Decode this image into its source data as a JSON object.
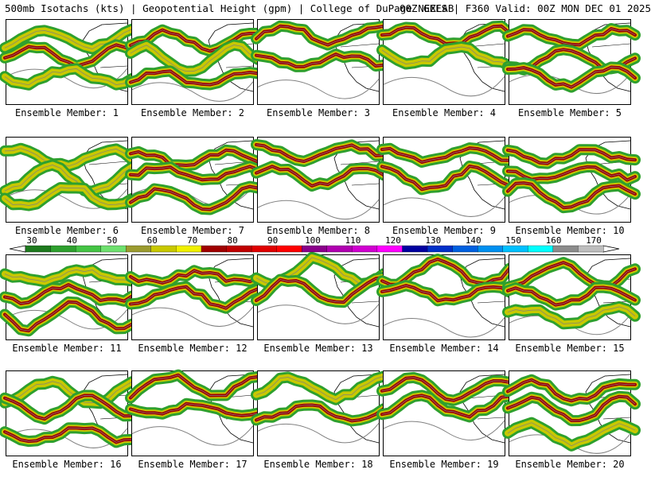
{
  "header": {
    "left": "500mb Isotachs (kts) | Geopotential Height (gpm) | College of DuPage NEXLAB",
    "right": "00Z GEFS | F360 Valid: 00Z MON DEC 01 2025"
  },
  "member_prefix": "Ensemble Member:",
  "members": [
    {
      "id": 1,
      "label": "Ensemble Member: 1"
    },
    {
      "id": 2,
      "label": "Ensemble Member: 2"
    },
    {
      "id": 3,
      "label": "Ensemble Member: 3"
    },
    {
      "id": 4,
      "label": "Ensemble Member: 4"
    },
    {
      "id": 5,
      "label": "Ensemble Member: 5"
    },
    {
      "id": 6,
      "label": "Ensemble Member: 6"
    },
    {
      "id": 7,
      "label": "Ensemble Member: 7"
    },
    {
      "id": 8,
      "label": "Ensemble Member: 8"
    },
    {
      "id": 9,
      "label": "Ensemble Member: 9"
    },
    {
      "id": 10,
      "label": "Ensemble Member: 10"
    },
    {
      "id": 11,
      "label": "Ensemble Member: 11"
    },
    {
      "id": 12,
      "label": "Ensemble Member: 12"
    },
    {
      "id": 13,
      "label": "Ensemble Member: 13"
    },
    {
      "id": 14,
      "label": "Ensemble Member: 14"
    },
    {
      "id": 15,
      "label": "Ensemble Member: 15"
    },
    {
      "id": 16,
      "label": "Ensemble Member: 16"
    },
    {
      "id": 17,
      "label": "Ensemble Member: 17"
    },
    {
      "id": 18,
      "label": "Ensemble Member: 18"
    },
    {
      "id": 19,
      "label": "Ensemble Member: 19"
    },
    {
      "id": 20,
      "label": "Ensemble Member: 20"
    }
  ],
  "colorbar": {
    "ticks": [
      "30",
      "40",
      "50",
      "60",
      "70",
      "80",
      "90",
      "100",
      "110",
      "120",
      "130",
      "140",
      "150",
      "160",
      "170"
    ],
    "colors": [
      "#1e7a1e",
      "#2ea02e",
      "#44c444",
      "#6ee06e",
      "#9c9c30",
      "#c8c800",
      "#f0f000",
      "#a00000",
      "#c00000",
      "#e00000",
      "#ff0000",
      "#8a008a",
      "#b000b0",
      "#d000d0",
      "#ff00ff",
      "#0000a0",
      "#0030c8",
      "#0060e0",
      "#0090f0",
      "#00c0ff",
      "#00ffff",
      "#8c8c8c",
      "#bebebe"
    ]
  },
  "colors": {
    "land_outline": "#000000",
    "height_contour": "#808080",
    "jet_low": "#2ea02e",
    "jet_mid": "#c8c800",
    "jet_high": "#a00000",
    "jet_max": "#8a008a"
  }
}
